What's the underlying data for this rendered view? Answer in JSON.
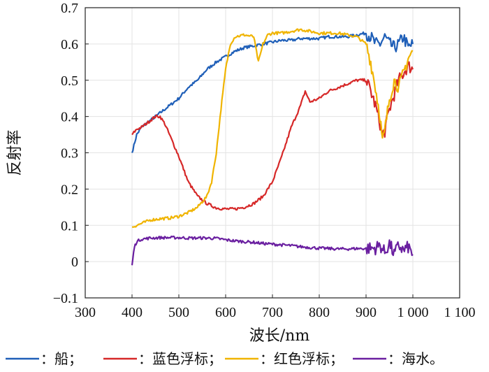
{
  "chart_data": {
    "type": "line",
    "title": "",
    "xlabel": "波长/nm",
    "ylabel": "反射率",
    "xlim": [
      300,
      1100
    ],
    "ylim": [
      -0.1,
      0.7
    ],
    "xticks": [
      300,
      400,
      500,
      600,
      700,
      800,
      900,
      1000,
      1100
    ],
    "xtick_labels": [
      "300",
      "400",
      "500",
      "600",
      "700",
      "800",
      "900",
      "1 000",
      "1 100"
    ],
    "yticks": [
      -0.1,
      0,
      0.1,
      0.2,
      0.3,
      0.4,
      0.5,
      0.6,
      0.7
    ],
    "ytick_labels": [
      "−0.1",
      "0",
      "0.1",
      "0.2",
      "0.3",
      "0.4",
      "0.5",
      "0.6",
      "0.7"
    ],
    "grid": true,
    "legend_position": "bottom",
    "series": [
      {
        "name": "船",
        "legend_text": "：船；",
        "color": "#1f5fb8",
        "x": [
          400,
          410,
          420,
          440,
          460,
          480,
          500,
          520,
          540,
          560,
          580,
          600,
          620,
          640,
          660,
          680,
          700,
          720,
          740,
          760,
          780,
          800,
          820,
          840,
          860,
          880,
          900,
          910,
          920,
          930,
          940,
          950,
          960,
          970,
          980,
          990,
          1000
        ],
        "y": [
          0.3,
          0.35,
          0.37,
          0.39,
          0.41,
          0.43,
          0.45,
          0.48,
          0.5,
          0.53,
          0.55,
          0.565,
          0.58,
          0.59,
          0.595,
          0.6,
          0.605,
          0.61,
          0.61,
          0.615,
          0.615,
          0.615,
          0.62,
          0.62,
          0.62,
          0.625,
          0.63,
          0.62,
          0.6,
          0.6,
          0.62,
          0.6,
          0.59,
          0.6,
          0.62,
          0.59,
          0.6
        ]
      },
      {
        "name": "蓝色浮标",
        "legend_text": "：蓝色浮标；",
        "color": "#d62828",
        "x": [
          400,
          410,
          420,
          440,
          450,
          460,
          470,
          480,
          500,
          520,
          540,
          560,
          580,
          600,
          620,
          640,
          660,
          680,
          700,
          720,
          740,
          760,
          770,
          780,
          800,
          820,
          840,
          860,
          880,
          900,
          910,
          920,
          930,
          935,
          940,
          950,
          960,
          970,
          980,
          990,
          1000
        ],
        "y": [
          0.35,
          0.365,
          0.37,
          0.39,
          0.4,
          0.4,
          0.38,
          0.35,
          0.29,
          0.22,
          0.18,
          0.16,
          0.148,
          0.145,
          0.145,
          0.15,
          0.16,
          0.18,
          0.22,
          0.29,
          0.37,
          0.43,
          0.47,
          0.44,
          0.45,
          0.47,
          0.48,
          0.49,
          0.5,
          0.5,
          0.47,
          0.43,
          0.38,
          0.35,
          0.36,
          0.42,
          0.46,
          0.5,
          0.52,
          0.54,
          0.53
        ]
      },
      {
        "name": "红色浮标",
        "legend_text": "：红色浮标；",
        "color": "#f0b400",
        "x": [
          400,
          420,
          440,
          460,
          480,
          500,
          520,
          540,
          550,
          560,
          570,
          580,
          590,
          600,
          610,
          620,
          640,
          660,
          670,
          680,
          690,
          700,
          720,
          740,
          760,
          780,
          800,
          820,
          840,
          860,
          880,
          900,
          910,
          920,
          930,
          935,
          940,
          950,
          960,
          970,
          980,
          990,
          1000
        ],
        "y": [
          0.095,
          0.105,
          0.115,
          0.118,
          0.12,
          0.125,
          0.135,
          0.15,
          0.165,
          0.18,
          0.22,
          0.3,
          0.42,
          0.53,
          0.6,
          0.62,
          0.625,
          0.62,
          0.55,
          0.6,
          0.625,
          0.63,
          0.63,
          0.635,
          0.64,
          0.635,
          0.63,
          0.63,
          0.63,
          0.625,
          0.62,
          0.6,
          0.55,
          0.48,
          0.4,
          0.33,
          0.36,
          0.45,
          0.5,
          0.48,
          0.52,
          0.56,
          0.58
        ]
      },
      {
        "name": "海水",
        "legend_text": "：海水。",
        "color": "#6a1fa0",
        "x": [
          400,
          405,
          410,
          420,
          440,
          460,
          480,
          500,
          520,
          540,
          560,
          580,
          600,
          620,
          640,
          660,
          680,
          700,
          720,
          740,
          760,
          780,
          800,
          820,
          840,
          860,
          880,
          900,
          920,
          930,
          940,
          950,
          960,
          970,
          980,
          990,
          1000
        ],
        "y": [
          -0.01,
          0.04,
          0.055,
          0.062,
          0.065,
          0.066,
          0.066,
          0.066,
          0.065,
          0.065,
          0.065,
          0.064,
          0.06,
          0.057,
          0.055,
          0.053,
          0.05,
          0.048,
          0.046,
          0.044,
          0.041,
          0.039,
          0.037,
          0.036,
          0.035,
          0.035,
          0.036,
          0.036,
          0.037,
          0.045,
          0.025,
          0.05,
          0.02,
          0.045,
          0.03,
          0.04,
          0.02
        ]
      }
    ]
  }
}
